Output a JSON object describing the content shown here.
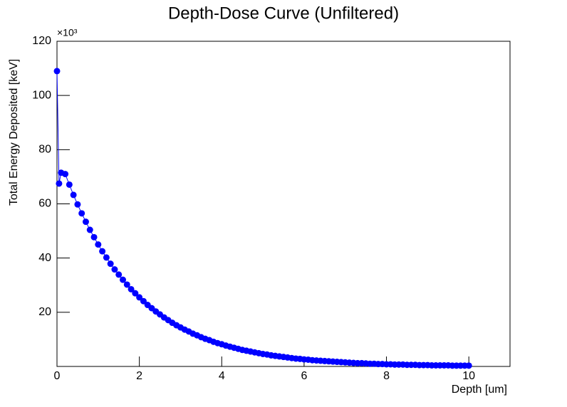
{
  "chart_data": {
    "type": "scatter",
    "title": "Depth-Dose Curve (Unfiltered)",
    "x_label": "Depth [um]",
    "y_label": "Total Energy Deposited [keV]",
    "y_multiplier": "×10³",
    "xlim": [
      0,
      11
    ],
    "xticks": [
      0,
      2,
      4,
      6,
      8,
      10
    ],
    "ylim": [
      0,
      120000
    ],
    "yticks": [
      {
        "value": 20000,
        "label": "20"
      },
      {
        "value": 40000,
        "label": "40"
      },
      {
        "value": 60000,
        "label": "60"
      },
      {
        "value": 80000,
        "label": "80"
      },
      {
        "value": 100000,
        "label": "100"
      },
      {
        "value": 120000,
        "label": "120"
      }
    ],
    "series": [
      {
        "color": "#0000ff",
        "x": [
          0,
          0.05,
          0.1,
          0.2,
          0.3,
          0.4,
          0.5,
          0.6,
          0.7,
          0.8,
          0.9,
          1.0,
          1.1,
          1.2,
          1.3,
          1.4,
          1.5,
          1.6,
          1.7,
          1.8,
          1.9,
          2.0,
          2.1,
          2.2,
          2.3,
          2.4,
          2.5,
          2.6,
          2.7,
          2.8,
          2.9,
          3.0,
          3.1,
          3.2,
          3.3,
          3.4,
          3.5,
          3.6,
          3.7,
          3.8,
          3.9,
          4.0,
          4.1,
          4.2,
          4.3,
          4.4,
          4.5,
          4.6,
          4.7,
          4.8,
          4.9,
          5.0,
          5.1,
          5.2,
          5.3,
          5.4,
          5.5,
          5.6,
          5.7,
          5.8,
          5.9,
          6.0,
          6.1,
          6.2,
          6.3,
          6.4,
          6.5,
          6.6,
          6.7,
          6.8,
          6.9,
          7.0,
          7.1,
          7.2,
          7.3,
          7.4,
          7.5,
          7.6,
          7.7,
          7.8,
          7.9,
          8.0,
          8.1,
          8.2,
          8.3,
          8.4,
          8.5,
          8.6,
          8.7,
          8.8,
          8.9,
          9.0,
          9.1,
          9.2,
          9.3,
          9.4,
          9.5,
          9.6,
          9.7,
          9.8,
          9.9,
          10.0
        ],
        "values": [
          109000,
          67500,
          71500,
          71000,
          67100,
          63300,
          59800,
          56500,
          53400,
          50400,
          47700,
          45000,
          42500,
          40200,
          37900,
          35800,
          33900,
          32000,
          30200,
          28500,
          27000,
          25500,
          24100,
          22700,
          21500,
          20300,
          19200,
          18100,
          17100,
          16100,
          15200,
          14400,
          13600,
          12900,
          12100,
          11500,
          10800,
          10200,
          9700,
          9100,
          8600,
          8200,
          7700,
          7300,
          6900,
          6500,
          6100,
          5800,
          5500,
          5200,
          4900,
          4600,
          4400,
          4100,
          3900,
          3700,
          3500,
          3300,
          3100,
          2900,
          2800,
          2600,
          2500,
          2300,
          2200,
          2100,
          2000,
          1900,
          1800,
          1700,
          1600,
          1500,
          1400,
          1300,
          1200,
          1200,
          1100,
          1000,
          1000,
          900,
          900,
          800,
          800,
          700,
          700,
          700,
          600,
          600,
          600,
          500,
          500,
          500,
          400,
          400,
          400,
          400,
          400,
          300,
          300,
          300,
          300,
          300
        ]
      }
    ]
  }
}
